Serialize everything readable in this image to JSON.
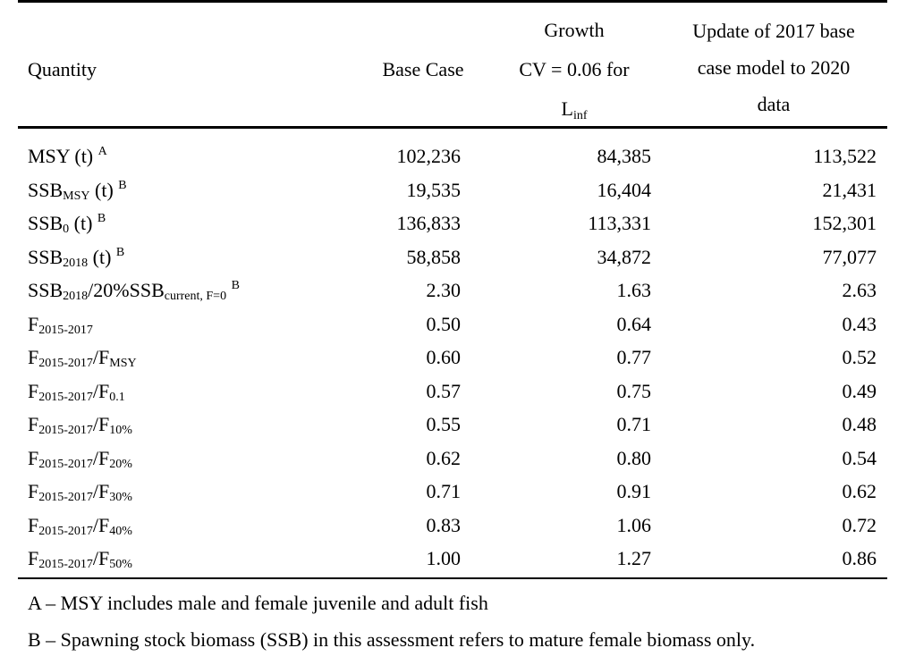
{
  "header": {
    "quantity": "Quantity",
    "base_case": "Base Case",
    "growth_line1": "Growth",
    "growth_line2": "CV = 0.06 for",
    "growth_line3_main": "L",
    "growth_line3_sub": "inf",
    "update_line1": "Update of 2017 base",
    "update_line2": "case model to 2020",
    "update_line3": "data"
  },
  "rows": [
    {
      "main": "MSY (t)",
      "sub": "",
      "rest": "",
      "sup": "A",
      "base": "102,236",
      "growth": "84,385",
      "update": "113,522"
    },
    {
      "main": "SSB",
      "sub": "MSY",
      "rest": " (t)",
      "sup": "B",
      "base": "19,535",
      "growth": "16,404",
      "update": "21,431"
    },
    {
      "main": "SSB",
      "sub": "0",
      "rest": " (t)",
      "sup": "B",
      "base": "136,833",
      "growth": "113,331",
      "update": "152,301"
    },
    {
      "main": "SSB",
      "sub": "2018",
      "rest": " (t)",
      "sup": "B",
      "base": "58,858",
      "growth": "34,872",
      "update": "77,077"
    },
    {
      "main": "SSB",
      "sub": "2018",
      "rest": "/20%SSB",
      "sub2": "current, F=0",
      "sup": "B",
      "base": "2.30",
      "growth": "1.63",
      "update": "2.63"
    },
    {
      "main": "F",
      "sub": "2015-2017",
      "rest": "",
      "sup": "",
      "base": "0.50",
      "growth": "0.64",
      "update": "0.43"
    },
    {
      "main": "F",
      "sub": "2015-2017",
      "rest": "/F",
      "sub2": "MSY",
      "sup": "",
      "base": "0.60",
      "growth": "0.77",
      "update": "0.52"
    },
    {
      "main": "F",
      "sub": "2015-2017",
      "rest": "/F",
      "sub2": "0.1",
      "sup": "",
      "base": "0.57",
      "growth": "0.75",
      "update": "0.49"
    },
    {
      "main": "F",
      "sub": "2015-2017",
      "rest": "/F",
      "sub2": "10%",
      "sup": "",
      "base": "0.55",
      "growth": "0.71",
      "update": "0.48"
    },
    {
      "main": "F",
      "sub": "2015-2017",
      "rest": "/F",
      "sub2": "20%",
      "sup": "",
      "base": "0.62",
      "growth": "0.80",
      "update": "0.54"
    },
    {
      "main": "F",
      "sub": "2015-2017",
      "rest": "/F",
      "sub2": "30%",
      "sup": "",
      "base": "0.71",
      "growth": "0.91",
      "update": "0.62"
    },
    {
      "main": "F",
      "sub": "2015-2017",
      "rest": "/F",
      "sub2": "40%",
      "sup": "",
      "base": "0.83",
      "growth": "1.06",
      "update": "0.72"
    },
    {
      "main": "F",
      "sub": "2015-2017",
      "rest": "/F",
      "sub2": "50%",
      "sup": "",
      "base": "1.00",
      "growth": "1.27",
      "update": "0.86"
    }
  ],
  "footnotes": {
    "a": "A – MSY includes male and female juvenile and adult fish",
    "b": "B – Spawning stock biomass (SSB) in this assessment refers to mature female biomass only."
  }
}
